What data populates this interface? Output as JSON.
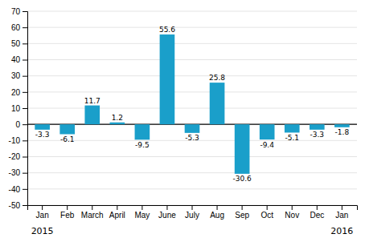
{
  "chart_data": {
    "type": "bar",
    "categories": [
      "Jan",
      "Feb",
      "March",
      "April",
      "May",
      "June",
      "July",
      "Aug",
      "Sep",
      "Oct",
      "Nov",
      "Dec",
      "Jan"
    ],
    "values": [
      -3.3,
      -6.1,
      11.7,
      1.2,
      -9.5,
      55.6,
      -5.3,
      25.8,
      -30.6,
      -9.4,
      -5.1,
      -3.3,
      -1.8
    ],
    "color": "#1a9fca",
    "ylim": [
      -50,
      70
    ],
    "yticks": [
      -50,
      -40,
      -30,
      -20,
      -10,
      0,
      10,
      20,
      30,
      40,
      50,
      60,
      70
    ],
    "grid": true,
    "data_labels": true,
    "annotations": [
      {
        "text": "2015",
        "x": 0
      },
      {
        "text": "2016",
        "x": 12
      }
    ]
  }
}
